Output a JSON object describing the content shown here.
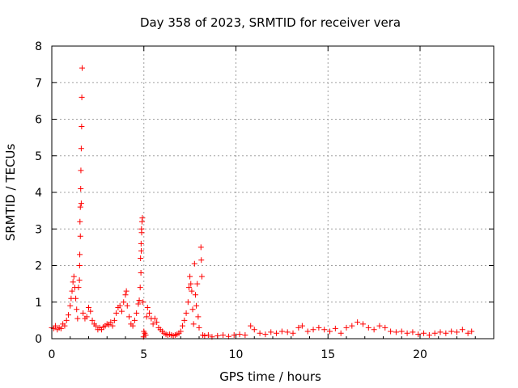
{
  "chart_data": {
    "type": "scatter",
    "title": "Day 358 of 2023, SRMTID for receiver vera",
    "xlabel": "GPS time / hours",
    "ylabel": "SRMTID / TECUs",
    "xlim": [
      0,
      24
    ],
    "ylim": [
      0,
      8
    ],
    "xticks": [
      0,
      5,
      10,
      15,
      20
    ],
    "xtick_labels": [
      "0",
      "5",
      "10",
      "15",
      "20"
    ],
    "yticks": [
      0,
      1,
      2,
      3,
      4,
      5,
      6,
      7,
      8
    ],
    "ytick_labels": [
      "0",
      "1",
      "2",
      "3",
      "4",
      "5",
      "6",
      "7",
      "8"
    ],
    "grid": true,
    "marker": "+",
    "series": [
      {
        "name": "SRMTID",
        "color": "#ff0000",
        "points": [
          [
            0.0,
            0.3
          ],
          [
            0.1,
            0.28
          ],
          [
            0.2,
            0.35
          ],
          [
            0.3,
            0.25
          ],
          [
            0.4,
            0.3
          ],
          [
            0.5,
            0.28
          ],
          [
            0.6,
            0.4
          ],
          [
            0.7,
            0.35
          ],
          [
            0.8,
            0.5
          ],
          [
            0.9,
            0.65
          ],
          [
            1.0,
            0.9
          ],
          [
            1.05,
            1.1
          ],
          [
            1.1,
            1.3
          ],
          [
            1.15,
            1.55
          ],
          [
            1.2,
            1.7
          ],
          [
            1.25,
            1.4
          ],
          [
            1.3,
            1.1
          ],
          [
            1.35,
            0.8
          ],
          [
            1.4,
            0.55
          ],
          [
            1.45,
            1.4
          ],
          [
            1.5,
            1.6
          ],
          [
            1.55,
            2.8
          ],
          [
            1.6,
            3.7
          ],
          [
            1.62,
            5.8
          ],
          [
            1.63,
            6.6
          ],
          [
            1.65,
            7.4
          ],
          [
            1.58,
            4.6
          ],
          [
            1.6,
            5.2
          ],
          [
            1.57,
            4.1
          ],
          [
            1.55,
            3.6
          ],
          [
            1.53,
            3.2
          ],
          [
            1.52,
            2.3
          ],
          [
            1.51,
            2.0
          ],
          [
            1.7,
            0.7
          ],
          [
            1.8,
            0.55
          ],
          [
            1.9,
            0.6
          ],
          [
            2.0,
            0.85
          ],
          [
            2.1,
            0.75
          ],
          [
            2.2,
            0.5
          ],
          [
            2.3,
            0.4
          ],
          [
            2.4,
            0.35
          ],
          [
            2.5,
            0.25
          ],
          [
            2.6,
            0.3
          ],
          [
            2.7,
            0.25
          ],
          [
            2.8,
            0.32
          ],
          [
            2.9,
            0.35
          ],
          [
            3.0,
            0.4
          ],
          [
            3.1,
            0.38
          ],
          [
            3.2,
            0.45
          ],
          [
            3.3,
            0.35
          ],
          [
            3.4,
            0.5
          ],
          [
            3.5,
            0.7
          ],
          [
            3.6,
            0.85
          ],
          [
            3.7,
            0.9
          ],
          [
            3.8,
            0.75
          ],
          [
            3.9,
            1.0
          ],
          [
            4.0,
            1.2
          ],
          [
            4.05,
            1.3
          ],
          [
            4.1,
            0.9
          ],
          [
            4.2,
            0.6
          ],
          [
            4.3,
            0.4
          ],
          [
            4.4,
            0.35
          ],
          [
            4.5,
            0.5
          ],
          [
            4.6,
            0.7
          ],
          [
            4.7,
            0.95
          ],
          [
            4.75,
            1.05
          ],
          [
            4.8,
            1.4
          ],
          [
            4.82,
            2.2
          ],
          [
            4.85,
            2.6
          ],
          [
            4.87,
            3.0
          ],
          [
            4.9,
            3.2
          ],
          [
            4.92,
            3.3
          ],
          [
            4.88,
            2.9
          ],
          [
            4.86,
            2.4
          ],
          [
            4.84,
            1.8
          ],
          [
            4.95,
            1.0
          ],
          [
            5.0,
            0.2
          ],
          [
            5.05,
            0.15
          ],
          [
            5.1,
            0.1
          ],
          [
            4.98,
            0.05
          ],
          [
            5.15,
            0.6
          ],
          [
            5.2,
            0.85
          ],
          [
            5.3,
            0.7
          ],
          [
            5.4,
            0.55
          ],
          [
            5.5,
            0.4
          ],
          [
            5.6,
            0.55
          ],
          [
            5.7,
            0.45
          ],
          [
            5.8,
            0.3
          ],
          [
            5.9,
            0.25
          ],
          [
            6.0,
            0.2
          ],
          [
            6.1,
            0.15
          ],
          [
            6.2,
            0.12
          ],
          [
            6.3,
            0.1
          ],
          [
            6.4,
            0.12
          ],
          [
            6.5,
            0.1
          ],
          [
            6.6,
            0.08
          ],
          [
            6.7,
            0.1
          ],
          [
            6.8,
            0.12
          ],
          [
            6.9,
            0.15
          ],
          [
            7.0,
            0.2
          ],
          [
            7.1,
            0.35
          ],
          [
            7.2,
            0.5
          ],
          [
            7.3,
            0.7
          ],
          [
            7.4,
            1.0
          ],
          [
            7.45,
            1.4
          ],
          [
            7.5,
            1.7
          ],
          [
            7.55,
            1.5
          ],
          [
            7.6,
            1.3
          ],
          [
            7.65,
            0.8
          ],
          [
            7.7,
            0.4
          ],
          [
            7.75,
            2.05
          ],
          [
            7.8,
            1.2
          ],
          [
            7.85,
            0.9
          ],
          [
            7.9,
            1.5
          ],
          [
            7.95,
            0.6
          ],
          [
            8.0,
            0.3
          ],
          [
            8.1,
            2.5
          ],
          [
            8.12,
            2.15
          ],
          [
            8.15,
            1.7
          ],
          [
            8.2,
            0.1
          ],
          [
            8.3,
            0.08
          ],
          [
            8.5,
            0.1
          ],
          [
            8.7,
            0.05
          ],
          [
            9.0,
            0.08
          ],
          [
            9.3,
            0.1
          ],
          [
            9.6,
            0.06
          ],
          [
            9.9,
            0.1
          ],
          [
            10.2,
            0.12
          ],
          [
            10.5,
            0.1
          ],
          [
            10.8,
            0.35
          ],
          [
            11.0,
            0.25
          ],
          [
            11.3,
            0.15
          ],
          [
            11.6,
            0.12
          ],
          [
            11.9,
            0.18
          ],
          [
            12.2,
            0.15
          ],
          [
            12.5,
            0.2
          ],
          [
            12.8,
            0.18
          ],
          [
            13.1,
            0.15
          ],
          [
            13.4,
            0.3
          ],
          [
            13.6,
            0.35
          ],
          [
            13.9,
            0.2
          ],
          [
            14.2,
            0.25
          ],
          [
            14.5,
            0.3
          ],
          [
            14.8,
            0.25
          ],
          [
            15.1,
            0.2
          ],
          [
            15.4,
            0.28
          ],
          [
            15.7,
            0.15
          ],
          [
            16.0,
            0.3
          ],
          [
            16.3,
            0.35
          ],
          [
            16.6,
            0.45
          ],
          [
            16.9,
            0.4
          ],
          [
            17.2,
            0.3
          ],
          [
            17.5,
            0.25
          ],
          [
            17.8,
            0.35
          ],
          [
            18.1,
            0.3
          ],
          [
            18.4,
            0.2
          ],
          [
            18.7,
            0.18
          ],
          [
            19.0,
            0.2
          ],
          [
            19.3,
            0.15
          ],
          [
            19.6,
            0.18
          ],
          [
            19.9,
            0.12
          ],
          [
            20.2,
            0.15
          ],
          [
            20.5,
            0.1
          ],
          [
            20.8,
            0.15
          ],
          [
            21.1,
            0.18
          ],
          [
            21.4,
            0.15
          ],
          [
            21.7,
            0.2
          ],
          [
            22.0,
            0.18
          ],
          [
            22.3,
            0.25
          ],
          [
            22.6,
            0.15
          ],
          [
            22.8,
            0.2
          ]
        ]
      }
    ]
  }
}
